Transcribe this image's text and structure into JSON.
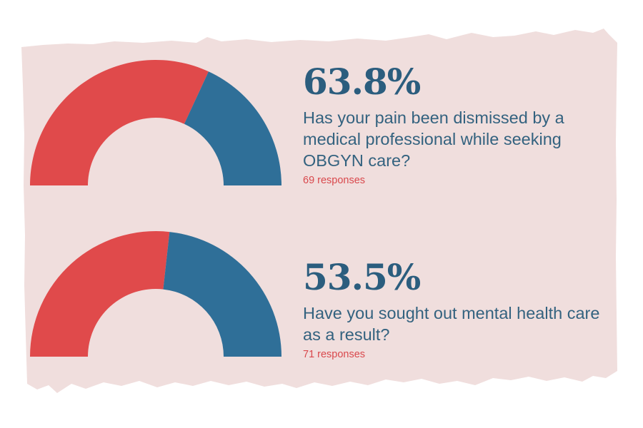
{
  "colors": {
    "background": "#f0dedd",
    "yes": "#e04a4b",
    "no": "#2f6f98",
    "headline": "#2b5d7e",
    "responses_text": "#d9484c"
  },
  "chart_data": [
    {
      "type": "pie",
      "style": "semicircle-donut",
      "headline": "63.8%",
      "question": "Has your pain been dismissed by a medical professional while seeking OBGYN care?",
      "responses": "69 responses",
      "values": [
        63.8,
        36.2
      ]
    },
    {
      "type": "pie",
      "style": "semicircle-donut",
      "headline": "53.5%",
      "question": "Have you sought out mental health care as a result?",
      "responses": "71 responses",
      "values": [
        53.5,
        46.5
      ]
    }
  ]
}
